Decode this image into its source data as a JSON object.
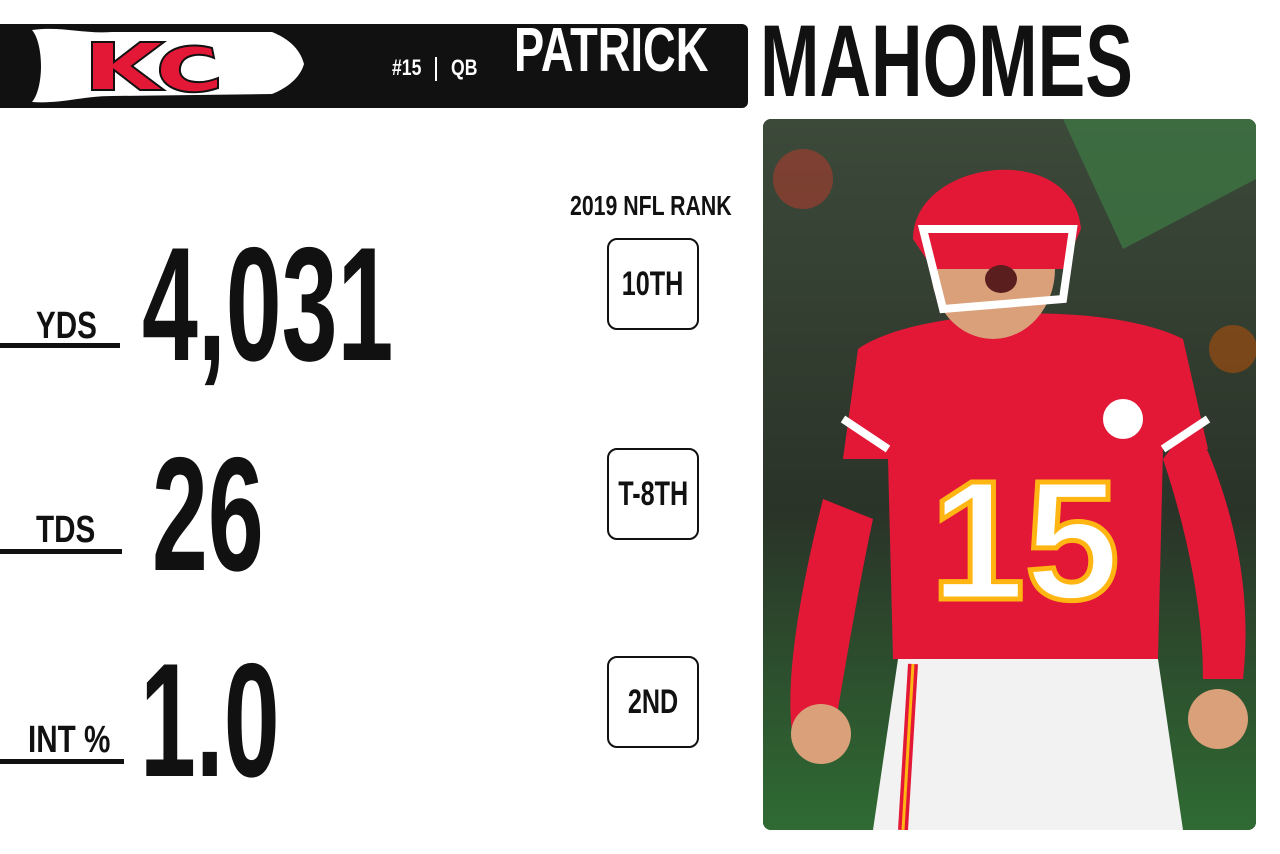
{
  "header": {
    "team_logo": "chiefs-kc-logo",
    "logo_letters": "KC",
    "player_number": "#15",
    "position": "QB",
    "first_name": "PATRICK",
    "last_name": "MAHOMES"
  },
  "rank_header": "2019 NFL RANK",
  "stats": [
    {
      "label": "YDS",
      "value": "4,031",
      "rank": "10TH"
    },
    {
      "label": "TDS",
      "value": "26",
      "rank": "T-8TH"
    },
    {
      "label": "INT %",
      "value": "1.0",
      "rank": "2ND"
    }
  ],
  "photo": {
    "subject": "player-celebration-photo",
    "jersey_number": "15"
  },
  "colors": {
    "team_red": "#e31837",
    "team_gold": "#ffb612",
    "bar_black": "#111111",
    "background": "#ffffff"
  }
}
